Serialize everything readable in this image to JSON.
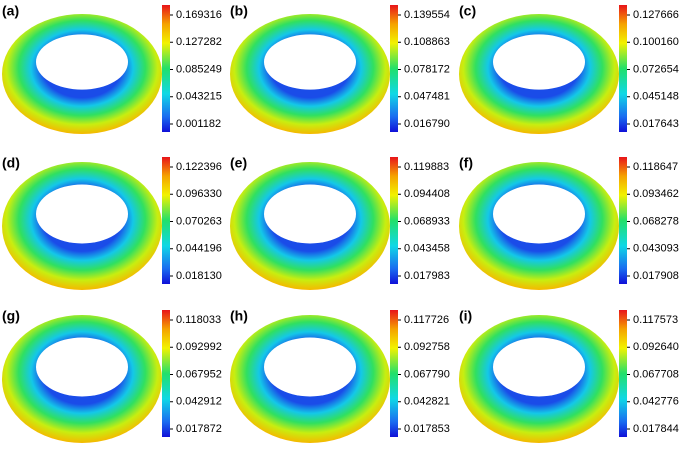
{
  "panels": [
    {
      "label": "(a)",
      "ticks": [
        "0.169316",
        "0.127282",
        "0.085249",
        "0.043215",
        "0.001182"
      ]
    },
    {
      "label": "(b)",
      "ticks": [
        "0.139554",
        "0.108863",
        "0.078172",
        "0.047481",
        "0.016790"
      ]
    },
    {
      "label": "(c)",
      "ticks": [
        "0.127666",
        "0.100160",
        "0.072654",
        "0.045148",
        "0.017643"
      ]
    },
    {
      "label": "(d)",
      "ticks": [
        "0.122396",
        "0.096330",
        "0.070263",
        "0.044196",
        "0.018130"
      ]
    },
    {
      "label": "(e)",
      "ticks": [
        "0.119883",
        "0.094408",
        "0.068933",
        "0.043458",
        "0.017983"
      ]
    },
    {
      "label": "(f)",
      "ticks": [
        "0.118647",
        "0.093462",
        "0.068278",
        "0.043093",
        "0.017908"
      ]
    },
    {
      "label": "(g)",
      "ticks": [
        "0.118033",
        "0.092992",
        "0.067952",
        "0.042912",
        "0.017872"
      ]
    },
    {
      "label": "(h)",
      "ticks": [
        "0.117726",
        "0.092758",
        "0.067790",
        "0.042821",
        "0.017853"
      ]
    },
    {
      "label": "(i)",
      "ticks": [
        "0.117573",
        "0.092640",
        "0.067708",
        "0.042776",
        "0.017844"
      ]
    }
  ]
}
